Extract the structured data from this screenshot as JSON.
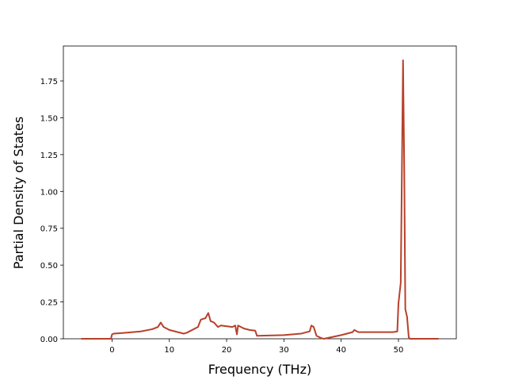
{
  "chart_data": {
    "type": "line",
    "xlabel": "Frequency (THz)",
    "ylabel": "Partial Density of States",
    "x": [
      -5.4,
      -0.2,
      0,
      0.3,
      2,
      5,
      7,
      8,
      8.5,
      9,
      10,
      12.5,
      13,
      15,
      15.5,
      16.3,
      16.8,
      17.2,
      17.8,
      18.5,
      19,
      21,
      21.5,
      21.8,
      22,
      22.5,
      23,
      24,
      25,
      25.3,
      30,
      33,
      34.5,
      34.8,
      35.2,
      35.7,
      36.5,
      37,
      40,
      42,
      42.3,
      43,
      49,
      49.8,
      50,
      50.4,
      50.8,
      51.0,
      51.2,
      51.5,
      51.8,
      52,
      57
    ],
    "series": [
      {
        "color": "#b8402a",
        "values": [
          0,
          0,
          0.03,
          0.035,
          0.04,
          0.05,
          0.065,
          0.08,
          0.11,
          0.08,
          0.06,
          0.035,
          0.04,
          0.08,
          0.13,
          0.14,
          0.175,
          0.12,
          0.11,
          0.08,
          0.09,
          0.08,
          0.09,
          0.03,
          0.09,
          0.08,
          0.07,
          0.06,
          0.055,
          0.02,
          0.025,
          0.035,
          0.05,
          0.09,
          0.08,
          0.02,
          0.005,
          0,
          0.025,
          0.045,
          0.06,
          0.045,
          0.045,
          0.05,
          0.24,
          0.38,
          1.89,
          1.2,
          0.2,
          0.15,
          0.01,
          0,
          0
        ]
      }
    ],
    "xlim": [
      -8.5,
      60.1
    ],
    "ylim": [
      0,
      1.987
    ],
    "xticks": [
      0,
      10,
      20,
      30,
      40,
      50
    ],
    "yticks": [
      {
        "value": 0,
        "label": "0.00"
      },
      {
        "value": 0.25,
        "label": "0.25"
      },
      {
        "value": 0.5,
        "label": "0.50"
      },
      {
        "value": 0.75,
        "label": "0.75"
      },
      {
        "value": 1,
        "label": "1.00"
      },
      {
        "value": 1.25,
        "label": "1.25"
      },
      {
        "value": 1.5,
        "label": "1.50"
      },
      {
        "value": 1.75,
        "label": "1.75"
      }
    ]
  }
}
